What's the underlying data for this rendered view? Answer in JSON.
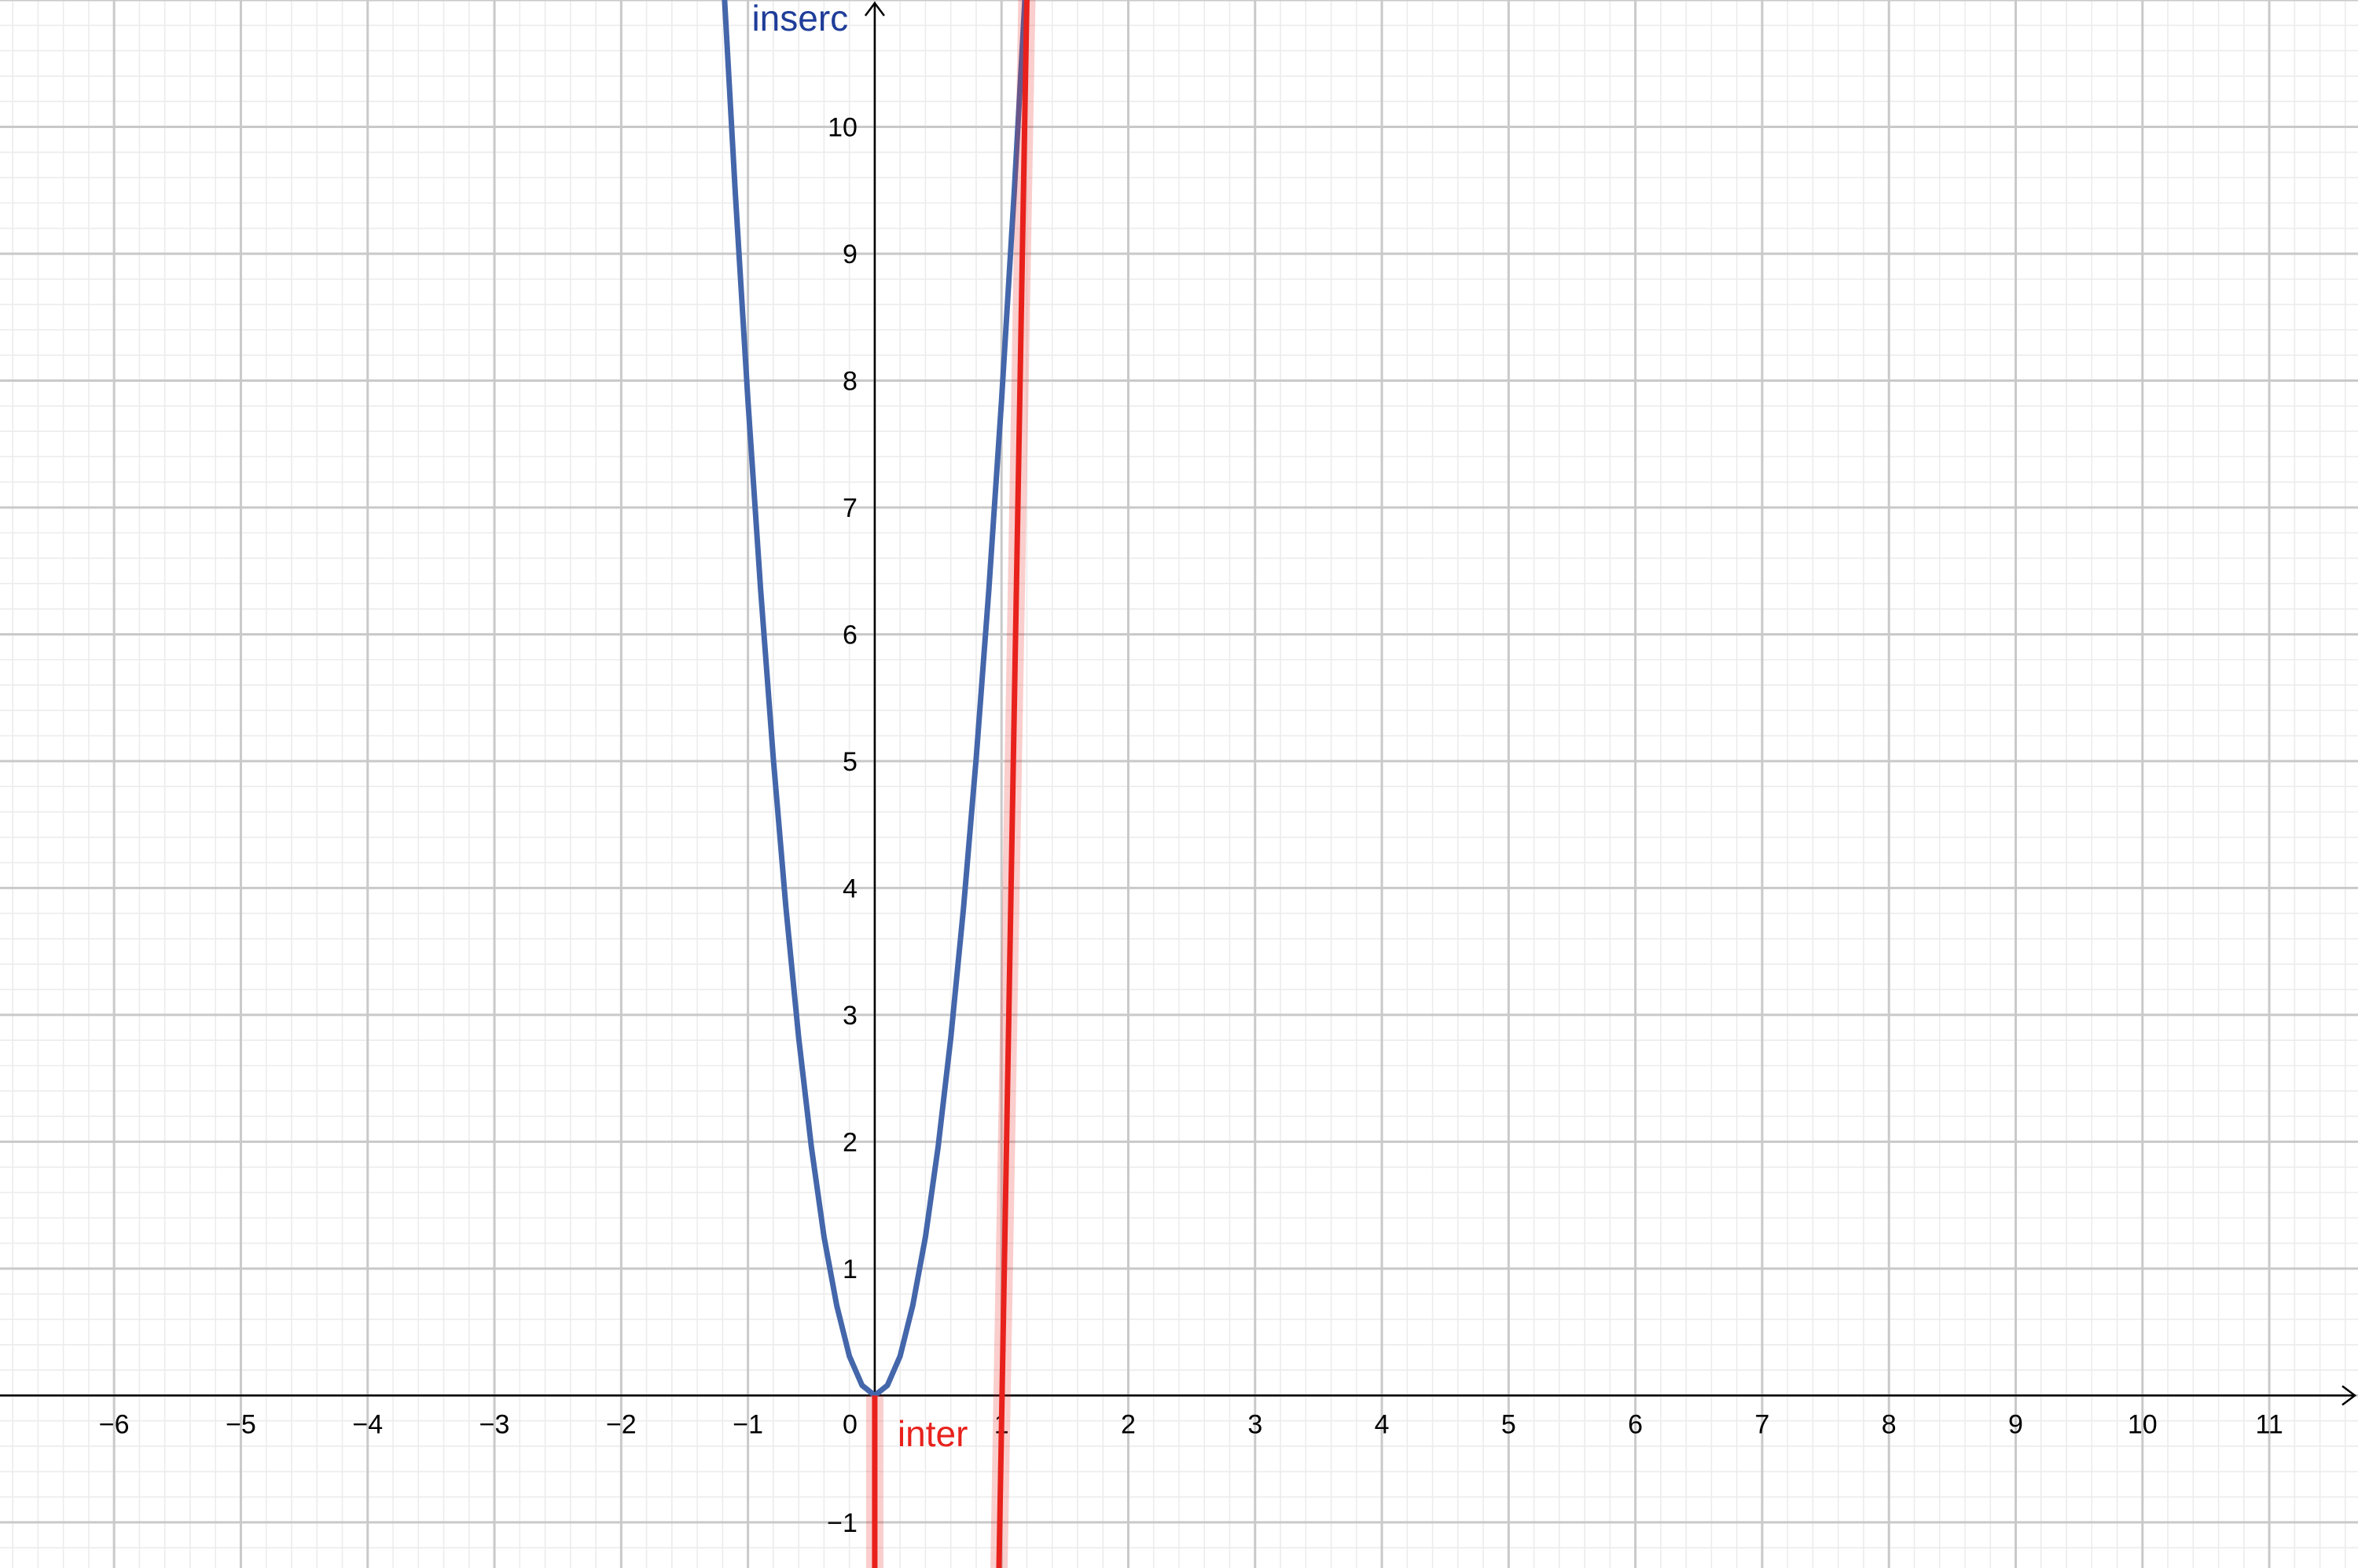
{
  "chart_data": {
    "type": "line",
    "title": "",
    "xlabel": "",
    "ylabel": "",
    "xlim": [
      -6.9,
      11.7
    ],
    "ylim": [
      -1.36,
      11.0
    ],
    "grid": {
      "major": 1,
      "minor": 0.2
    },
    "x_ticks": [
      "−6",
      "−5",
      "−4",
      "−3",
      "−2",
      "−1",
      "1",
      "2",
      "3",
      "4",
      "5",
      "6",
      "7",
      "8",
      "9",
      "10",
      "11"
    ],
    "x_tick_values": [
      -6,
      -5,
      -4,
      -3,
      -2,
      -1,
      1,
      2,
      3,
      4,
      5,
      6,
      7,
      8,
      9,
      10,
      11
    ],
    "y_ticks": [
      "−1",
      "1",
      "2",
      "3",
      "4",
      "5",
      "6",
      "7",
      "8",
      "9",
      "10"
    ],
    "y_tick_values": [
      -1,
      1,
      2,
      3,
      4,
      5,
      6,
      7,
      8,
      9,
      10
    ],
    "origin_label": "0",
    "series": [
      {
        "name": "inserc",
        "color": "#4466aa",
        "label_color": "#1f3d99",
        "x": [
          -1.2,
          -1.1,
          -1.0,
          -0.9,
          -0.8,
          -0.7,
          -0.6,
          -0.5,
          -0.4,
          -0.3,
          -0.2,
          -0.1,
          0.0,
          0.1,
          0.2,
          0.3,
          0.4,
          0.5,
          0.6,
          0.7,
          0.8,
          0.9,
          1.0,
          1.1,
          1.2,
          1.25
        ],
        "y": [
          11.28,
          9.48,
          7.84,
          6.35,
          5.02,
          3.84,
          2.82,
          1.96,
          1.25,
          0.71,
          0.31,
          0.08,
          0.0,
          0.08,
          0.31,
          0.71,
          1.25,
          1.96,
          2.82,
          3.84,
          5.02,
          6.35,
          7.84,
          9.48,
          11.28,
          12.25
        ]
      },
      {
        "name": "inter",
        "color": "#e8211c",
        "label_color": "#e8211c",
        "segments": [
          {
            "x": [
              0.0,
              0.0
            ],
            "y": [
              -1.36,
              0.0
            ]
          },
          {
            "x": [
              0.98,
              1.2
            ],
            "y": [
              -1.36,
              11.0
            ]
          }
        ]
      }
    ]
  }
}
